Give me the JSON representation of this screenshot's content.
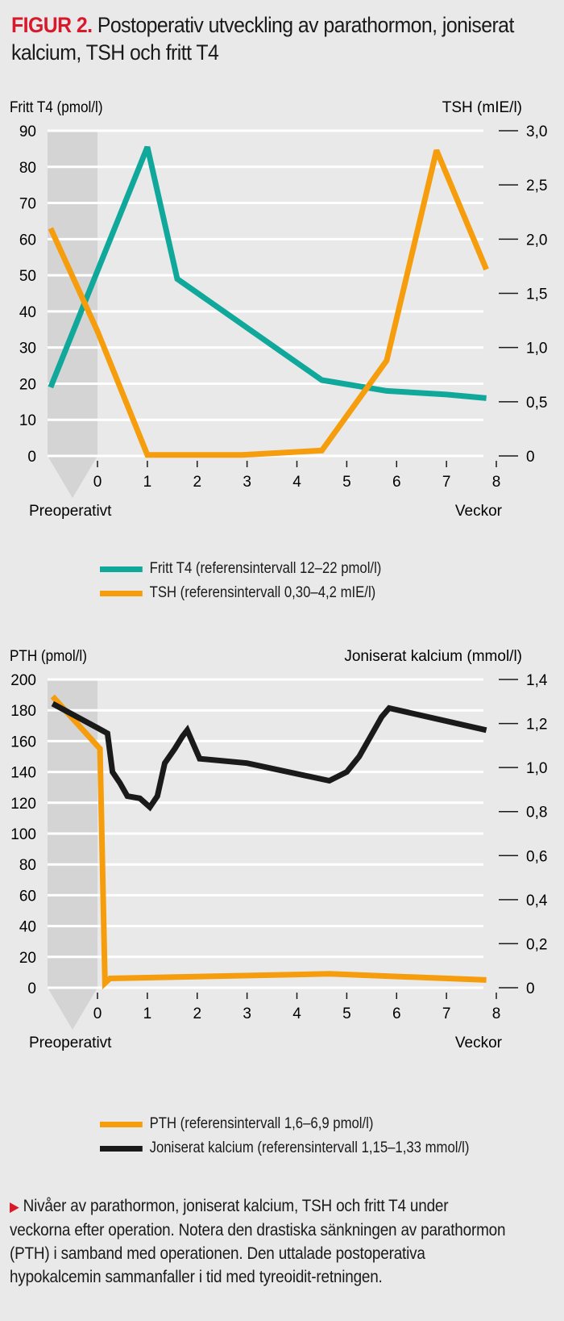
{
  "header": {
    "figure_label": "FIGUR 2.",
    "title": "Postoperativ utveckling av parathormon, joniserat kalcium, TSH och fritt T4"
  },
  "colors": {
    "teal": "#10a89a",
    "orange": "#f59d0c",
    "black": "#1a1a1a",
    "red": "#d7192b",
    "background": "#e9e9e9",
    "preop_band": "#d4d4d4"
  },
  "caption": {
    "marker": "▶",
    "text": "Nivåer av parathormon, joniserat kalcium, TSH och fritt T4 under veckorna efter operation. Notera den drastiska sänkningen av parathormon (PTH) i samband med operationen. Den uttalade postoperativa hypokalcemin sammanfaller i tid med tyreoidit-retningen."
  },
  "chart_data": [
    {
      "type": "line",
      "title": "",
      "xlabel": "Veckor",
      "preop_label": "Preoperativt",
      "x_ticks": [
        "0",
        "1",
        "2",
        "3",
        "4",
        "5",
        "6",
        "7",
        "8"
      ],
      "xlim": [
        -1,
        8
      ],
      "ylabel_left": "Fritt T4 (pmol/l)",
      "ylim_left": [
        0,
        90
      ],
      "yticks_left": [
        "0",
        "10",
        "20",
        "30",
        "40",
        "50",
        "60",
        "70",
        "80",
        "90"
      ],
      "ylabel_right": "TSH (mIE/l)",
      "ylim_right": [
        0,
        3.0
      ],
      "yticks_right": [
        "0",
        "0,5",
        "1,0",
        "1,5",
        "2,0",
        "2,5",
        "3,0"
      ],
      "grid": true,
      "legend_placement": "bottom",
      "series": [
        {
          "name": "Fritt T4 (referensintervall 12–22 pmol/l)",
          "axis": "left",
          "color": "#10a89a",
          "x": [
            -0.94,
            1.0,
            1.6,
            4.5,
            5.8,
            7.0,
            7.8
          ],
          "y": [
            19,
            85.5,
            49,
            21,
            18,
            17,
            16
          ]
        },
        {
          "name": "TSH (referensintervall 0,30–4,2 mIE/l)",
          "axis": "right",
          "color": "#f59d0c",
          "x": [
            -0.94,
            0.0,
            1.0,
            2.9,
            4.5,
            5.8,
            6.8,
            7.8
          ],
          "y": [
            2.1,
            1.15,
            0.01,
            0.01,
            0.05,
            0.88,
            2.82,
            1.72
          ]
        }
      ]
    },
    {
      "type": "line",
      "title": "",
      "xlabel": "Veckor",
      "preop_label": "Preoperativt",
      "x_ticks": [
        "0",
        "1",
        "2",
        "3",
        "4",
        "5",
        "6",
        "7",
        "8"
      ],
      "xlim": [
        -1,
        8
      ],
      "ylabel_left": "PTH (pmol/l)",
      "ylim_left": [
        0,
        200
      ],
      "yticks_left": [
        "0",
        "20",
        "40",
        "60",
        "80",
        "100",
        "120",
        "140",
        "160",
        "180",
        "200"
      ],
      "ylabel_right": "Joniserat kalcium (mmol/l)",
      "ylim_right": [
        0,
        1.4
      ],
      "yticks_right": [
        "0",
        "0,2",
        "0,4",
        "0,6",
        "0,8",
        "1,0",
        "1,2",
        "1,4"
      ],
      "grid": true,
      "legend_placement": "bottom",
      "series": [
        {
          "name": "PTH (referensintervall 1,6–6,9 pmol/l)",
          "axis": "left",
          "color": "#f59d0c",
          "x": [
            -0.9,
            0.05,
            0.15,
            0.25,
            4.65,
            7.8
          ],
          "y": [
            189,
            155,
            3,
            6,
            9,
            5
          ]
        },
        {
          "name": "Joniserat kalcium (referensintervall 1,15–1,33 mmol/l)",
          "axis": "right",
          "color": "#1a1a1a",
          "x": [
            -0.9,
            0.0,
            0.2,
            0.3,
            0.45,
            0.6,
            0.85,
            1.05,
            1.2,
            1.35,
            1.55,
            1.7,
            1.8,
            2.05,
            3.0,
            4.65,
            5.0,
            5.25,
            5.7,
            5.85,
            7.8
          ],
          "y": [
            1.29,
            1.18,
            1.155,
            0.98,
            0.93,
            0.87,
            0.86,
            0.82,
            0.87,
            1.02,
            1.085,
            1.14,
            1.17,
            1.04,
            1.02,
            0.94,
            0.98,
            1.05,
            1.23,
            1.27,
            1.17
          ]
        }
      ]
    }
  ]
}
